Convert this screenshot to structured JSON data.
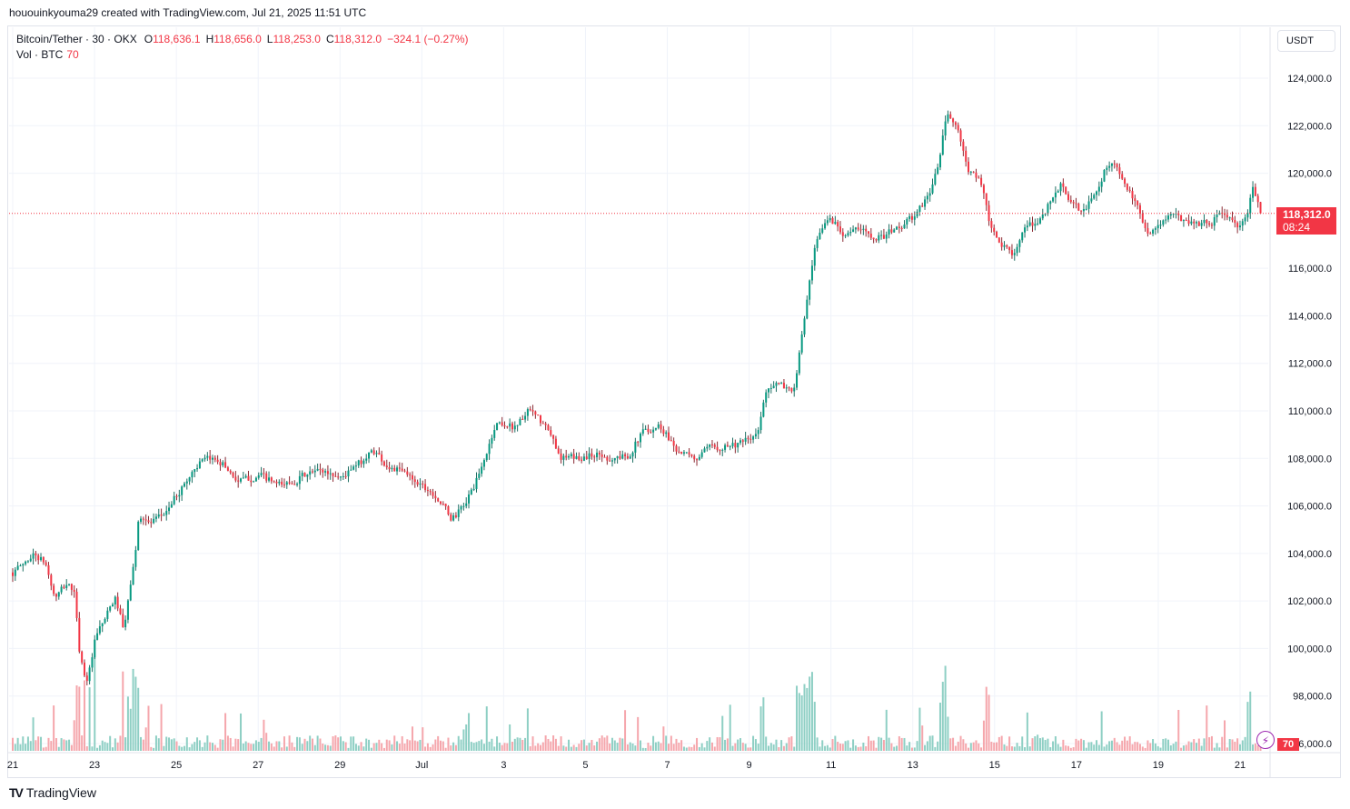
{
  "caption": "hououinkyouma29 created with TradingView.com, Jul 21, 2025 11:51 UTC",
  "legend": {
    "symbol": "Bitcoin/Tether · 30 · OKX",
    "open_label": "O",
    "open": "118,636.1",
    "high_label": "H",
    "high": "118,656.0",
    "low_label": "L",
    "low": "118,253.0",
    "close_label": "C",
    "close": "118,312.0",
    "change": "−324.1 (−0.27%)",
    "vol_label": "Vol · BTC",
    "vol": "70"
  },
  "currency_button": "USDT",
  "last_price": {
    "value": "118,312.0",
    "countdown": "08:24"
  },
  "volume_tag": "70",
  "footer": {
    "brand": "TradingView"
  },
  "colors": {
    "up": "#089981",
    "down": "#f23645",
    "vol_up": "#8ecfc4",
    "vol_down": "#f5a6ac",
    "grid": "#f0f3fa"
  },
  "icons": {
    "lightning": "lightning-icon",
    "logo": "tradingview-logo-icon"
  },
  "chart_data": {
    "type": "candlestick",
    "title": "Bitcoin/Tether · 30 · OKX",
    "y_range": [
      96500,
      124600
    ],
    "y_ticks": [
      {
        "value": 124000,
        "label": "124,000.0"
      },
      {
        "value": 122000,
        "label": "122,000.0"
      },
      {
        "value": 120000,
        "label": "120,000.0"
      },
      {
        "value": 116000,
        "label": "116,000.0"
      },
      {
        "value": 114000,
        "label": "114,000.0"
      },
      {
        "value": 112000,
        "label": "112,000.0"
      },
      {
        "value": 110000,
        "label": "110,000.0"
      },
      {
        "value": 108000,
        "label": "108,000.0"
      },
      {
        "value": 106000,
        "label": "106,000.0"
      },
      {
        "value": 104000,
        "label": "104,000.0"
      },
      {
        "value": 102000,
        "label": "102,000.0"
      },
      {
        "value": 100000,
        "label": "100,000.0"
      },
      {
        "value": 98000,
        "label": "98,000.0"
      },
      {
        "value": 96000,
        "label": "96,000.0"
      }
    ],
    "x_range": [
      0,
      30.8
    ],
    "x_ticks": [
      {
        "value": 0,
        "label": "21"
      },
      {
        "value": 2,
        "label": "23"
      },
      {
        "value": 4,
        "label": "25"
      },
      {
        "value": 6,
        "label": "27"
      },
      {
        "value": 8,
        "label": "29"
      },
      {
        "value": 10,
        "label": "Jul"
      },
      {
        "value": 12,
        "label": "3"
      },
      {
        "value": 14,
        "label": "5"
      },
      {
        "value": 16,
        "label": "7"
      },
      {
        "value": 18,
        "label": "9"
      },
      {
        "value": 20,
        "label": "11"
      },
      {
        "value": 22,
        "label": "13"
      },
      {
        "value": 24,
        "label": "15"
      },
      {
        "value": 26,
        "label": "17"
      },
      {
        "value": 28,
        "label": "19"
      },
      {
        "value": 30,
        "label": "21"
      }
    ],
    "price_path": [
      [
        0,
        103200
      ],
      [
        0.5,
        104000
      ],
      [
        0.8,
        103500
      ],
      [
        1.0,
        102000
      ],
      [
        1.3,
        102800
      ],
      [
        1.5,
        102300
      ],
      [
        1.6,
        99500
      ],
      [
        1.8,
        98500
      ],
      [
        2.0,
        100500
      ],
      [
        2.3,
        101500
      ],
      [
        2.5,
        102200
      ],
      [
        2.7,
        100500
      ],
      [
        2.9,
        103500
      ],
      [
        3.0,
        104200
      ],
      [
        3.05,
        106000
      ],
      [
        3.3,
        105200
      ],
      [
        3.6,
        105500
      ],
      [
        4.0,
        106500
      ],
      [
        4.5,
        107800
      ],
      [
        5.0,
        108000
      ],
      [
        5.5,
        107000
      ],
      [
        6.0,
        107300
      ],
      [
        6.5,
        106800
      ],
      [
        7.0,
        107200
      ],
      [
        7.5,
        107500
      ],
      [
        8.0,
        107200
      ],
      [
        8.4,
        107700
      ],
      [
        8.8,
        108400
      ],
      [
        9.1,
        107700
      ],
      [
        9.5,
        107400
      ],
      [
        9.9,
        107000
      ],
      [
        10.3,
        106500
      ],
      [
        10.7,
        105400
      ],
      [
        11.0,
        106000
      ],
      [
        11.4,
        107400
      ],
      [
        11.8,
        109600
      ],
      [
        12.2,
        109300
      ],
      [
        12.6,
        110000
      ],
      [
        13.0,
        109300
      ],
      [
        13.4,
        108000
      ],
      [
        13.8,
        108000
      ],
      [
        14.2,
        108200
      ],
      [
        14.6,
        108000
      ],
      [
        15.0,
        108100
      ],
      [
        15.4,
        109200
      ],
      [
        15.8,
        109400
      ],
      [
        16.2,
        108400
      ],
      [
        16.6,
        107900
      ],
      [
        17.0,
        108400
      ],
      [
        17.4,
        108600
      ],
      [
        17.8,
        108600
      ],
      [
        18.2,
        109000
      ],
      [
        18.4,
        111200
      ],
      [
        18.8,
        111000
      ],
      [
        19.1,
        110900
      ],
      [
        19.3,
        113800
      ],
      [
        19.6,
        117000
      ],
      [
        19.9,
        118200
      ],
      [
        20.3,
        117500
      ],
      [
        20.7,
        117600
      ],
      [
        21.2,
        117300
      ],
      [
        21.7,
        117800
      ],
      [
        22.1,
        118300
      ],
      [
        22.4,
        119300
      ],
      [
        22.6,
        120300
      ],
      [
        22.8,
        122600
      ],
      [
        23.1,
        121700
      ],
      [
        23.3,
        120000
      ],
      [
        23.6,
        119900
      ],
      [
        23.9,
        117400
      ],
      [
        24.1,
        117000
      ],
      [
        24.4,
        116600
      ],
      [
        24.7,
        117600
      ],
      [
        25.0,
        117900
      ],
      [
        25.3,
        118700
      ],
      [
        25.6,
        119600
      ],
      [
        25.9,
        118500
      ],
      [
        26.2,
        118400
      ],
      [
        26.5,
        119500
      ],
      [
        26.8,
        120600
      ],
      [
        27.2,
        119400
      ],
      [
        27.5,
        118300
      ],
      [
        27.8,
        117400
      ],
      [
        28.1,
        118100
      ],
      [
        28.4,
        118200
      ],
      [
        28.7,
        118000
      ],
      [
        29.0,
        117900
      ],
      [
        29.3,
        118000
      ],
      [
        29.6,
        118400
      ],
      [
        29.9,
        117600
      ],
      [
        30.1,
        117900
      ],
      [
        30.3,
        119500
      ],
      [
        30.5,
        118312
      ]
    ],
    "candle_count": 488,
    "last_price": 118312.0,
    "volume_unit": "BTC",
    "current_volume": 70
  }
}
